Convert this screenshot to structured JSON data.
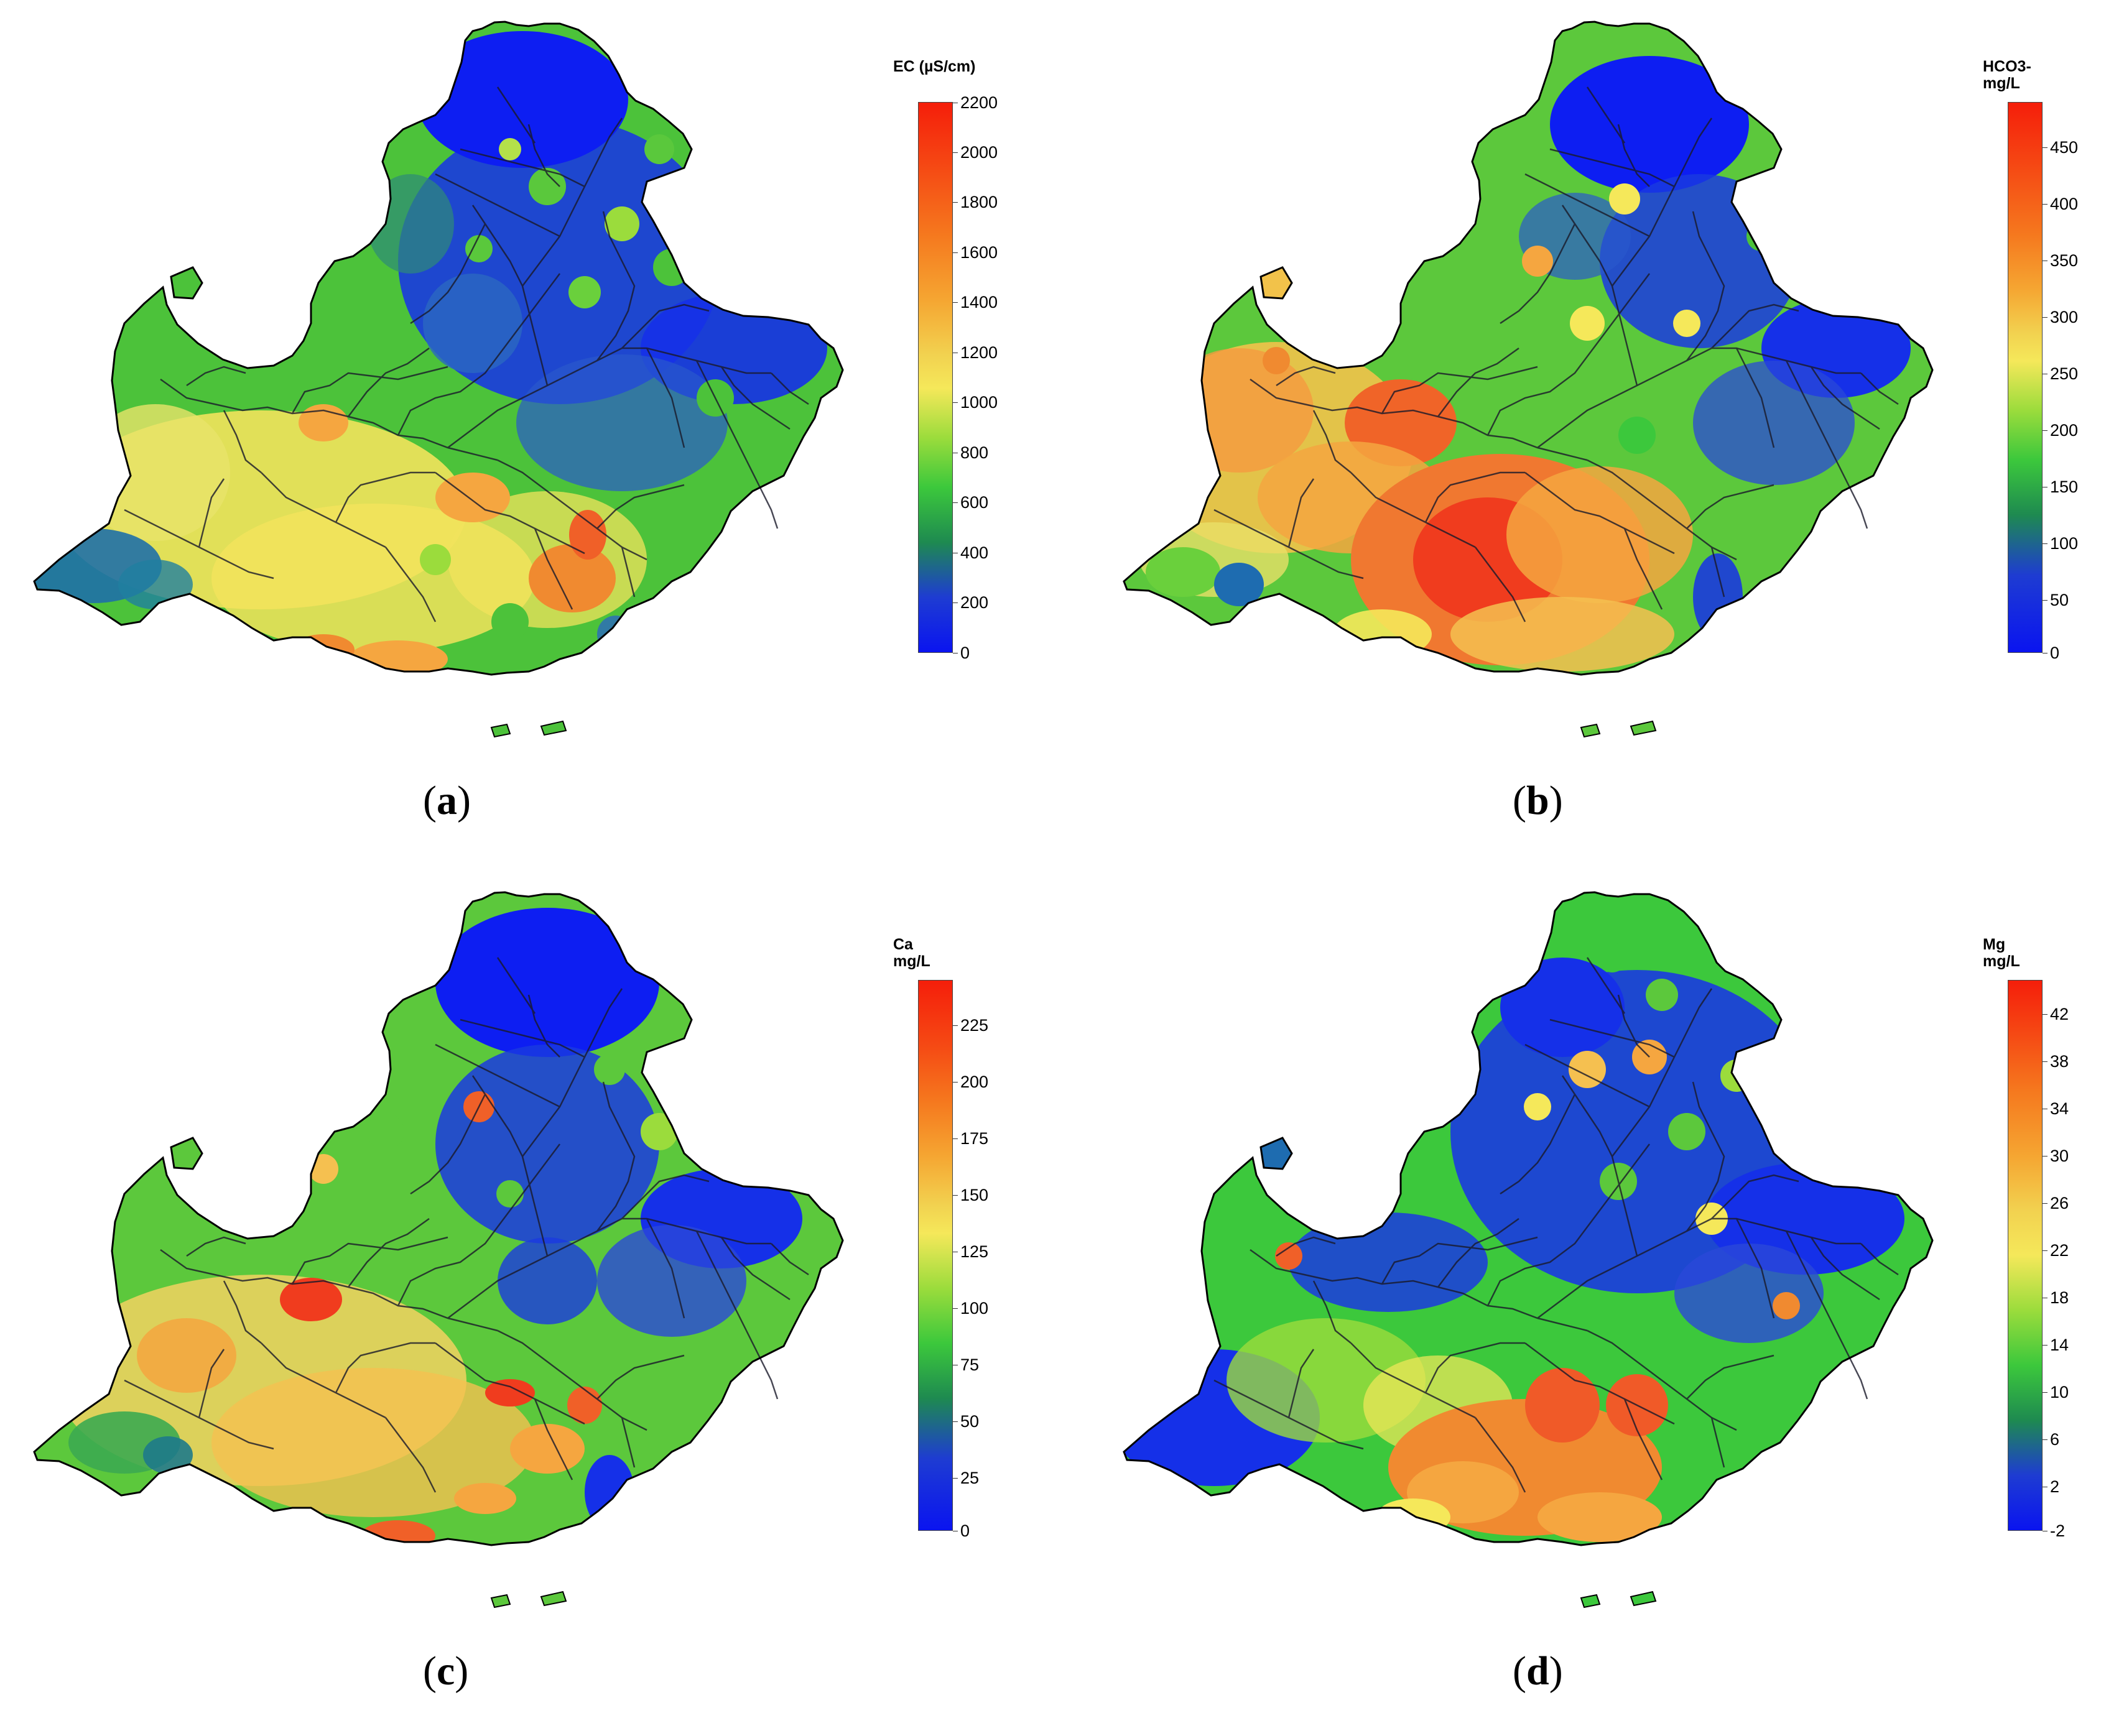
{
  "palette": {
    "blue": "#0a14f0",
    "deep_green": "#1e8a3a",
    "green": "#3cc83c",
    "light_green": "#9bdc3c",
    "yellow": "#f5e85a",
    "orange": "#f59632",
    "red": "#f01e0a",
    "river": "#1a1a2a",
    "outline": "#000000"
  },
  "panels": [
    {
      "id": "a",
      "caption_letter": "a",
      "legend_title_lines": [
        "EC (µS/cm)"
      ],
      "ticks": [
        "2200",
        "2000",
        "1800",
        "1600",
        "1400",
        "1200",
        "1000",
        "800",
        "600",
        "400",
        "200",
        "0"
      ],
      "pattern": "ec"
    },
    {
      "id": "b",
      "caption_letter": "b",
      "legend_title_lines": [
        "HCO3-",
        "mg/L"
      ],
      "ticks": [
        "450",
        "400",
        "350",
        "300",
        "250",
        "200",
        "150",
        "100",
        "50",
        "0"
      ],
      "pattern": "hco3"
    },
    {
      "id": "c",
      "caption_letter": "c",
      "legend_title_lines": [
        "Ca",
        "mg/L"
      ],
      "ticks": [
        "225",
        "200",
        "175",
        "150",
        "125",
        "100",
        "75",
        "50",
        "25",
        "0"
      ],
      "pattern": "ca"
    },
    {
      "id": "d",
      "caption_letter": "d",
      "legend_title_lines": [
        "Mg",
        "mg/L"
      ],
      "ticks": [
        "42",
        "38",
        "34",
        "30",
        "26",
        "22",
        "18",
        "14",
        "10",
        "6",
        "2",
        "-2"
      ],
      "pattern": "mg"
    }
  ]
}
